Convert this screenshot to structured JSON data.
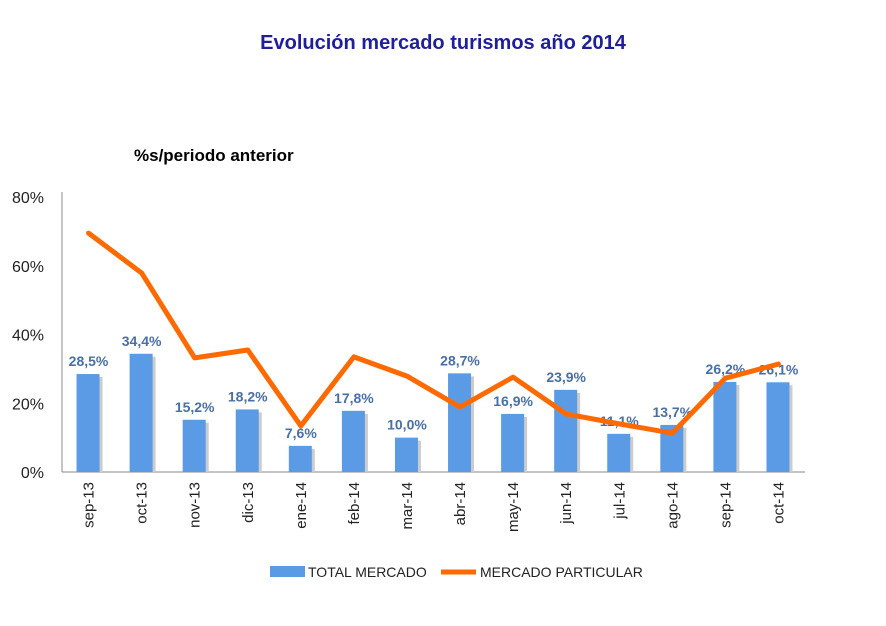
{
  "chart_data": {
    "type": "bar+line",
    "title": "Evolución mercado turismos año 2014",
    "subtitle": "%s/periodo anterior",
    "categories": [
      "sep-13",
      "oct-13",
      "nov-13",
      "dic-13",
      "ene-14",
      "feb-14",
      "mar-14",
      "abr-14",
      "may-14",
      "jun-14",
      "jul-14",
      "ago-14",
      "sep-14",
      "oct-14"
    ],
    "ylim": [
      0,
      80
    ],
    "yticks": [
      "0%",
      "20%",
      "40%",
      "60%",
      "80%"
    ],
    "grid": false,
    "legend": "bottom",
    "series": [
      {
        "name": "TOTAL MERCADO",
        "type": "bar",
        "color": "#5b9be6",
        "values": [
          28.5,
          34.4,
          15.2,
          18.2,
          7.6,
          17.8,
          10.0,
          28.7,
          16.9,
          23.9,
          11.1,
          13.7,
          26.2,
          26.1
        ],
        "labels": [
          "28,5%",
          "34,4%",
          "15,2%",
          "18,2%",
          "7,6%",
          "17,8%",
          "10,0%",
          "28,7%",
          "16,9%",
          "23,9%",
          "11,1%",
          "13,7%",
          "26,2%",
          "26,1%"
        ]
      },
      {
        "name": "MERCADO PARTICULAR",
        "type": "line",
        "color": "#ff6a00",
        "values": [
          69.5,
          57.9,
          33.2,
          35.5,
          13.4,
          33.5,
          27.9,
          18.9,
          27.6,
          16.9,
          14.0,
          11.3,
          27.3,
          31.4
        ]
      }
    ]
  }
}
